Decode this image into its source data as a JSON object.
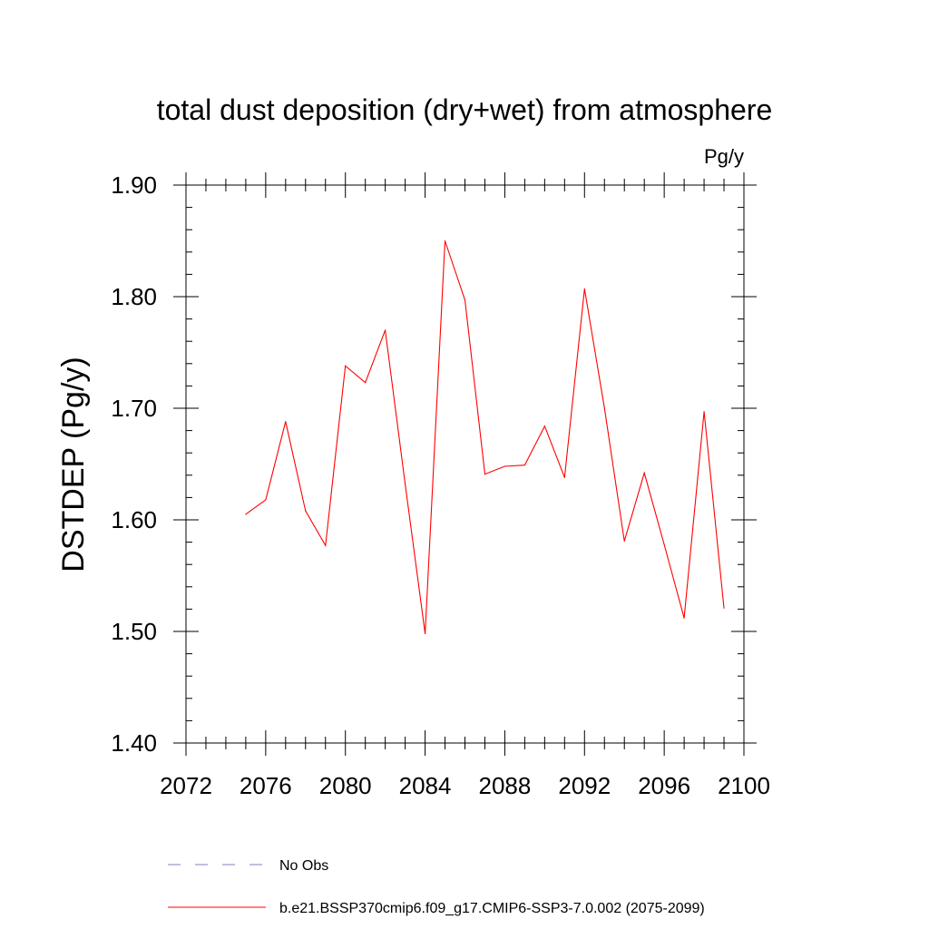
{
  "chart_data": {
    "type": "line",
    "title": "total dust deposition (dry+wet) from atmosphere",
    "units": "Pg/y",
    "ylabel": "DSTDEP  (Pg/y)",
    "xlabel": "",
    "xlim": [
      2072,
      2100
    ],
    "ylim": [
      1.4,
      1.9
    ],
    "x_ticks": [
      "2072",
      "2076",
      "2080",
      "2084",
      "2088",
      "2092",
      "2096",
      "2100"
    ],
    "y_ticks": [
      "1.40",
      "1.50",
      "1.60",
      "1.70",
      "1.80",
      "1.90"
    ],
    "grid": false,
    "series": [
      {
        "name": "b.e21.BSSP370cmip6.f09_g17.CMIP6-SSP3-7.0.002 (2075-2099)",
        "color": "#ff0000",
        "style": "solid",
        "x": [
          2075,
          2076,
          2077,
          2078,
          2079,
          2080,
          2081,
          2082,
          2083,
          2084,
          2085,
          2086,
          2087,
          2088,
          2089,
          2090,
          2091,
          2092,
          2093,
          2094,
          2095,
          2096,
          2097,
          2098,
          2099
        ],
        "values": [
          1.605,
          1.618,
          1.688,
          1.608,
          1.577,
          1.738,
          1.723,
          1.77,
          1.632,
          1.498,
          1.85,
          1.797,
          1.641,
          1.648,
          1.649,
          1.684,
          1.638,
          1.807,
          1.7,
          1.581,
          1.642,
          1.578,
          1.512,
          1.697,
          1.521
        ]
      }
    ],
    "legend": [
      {
        "label": "No Obs",
        "color": "#7f7fbf",
        "style": "dashed"
      },
      {
        "label": "b.e21.BSSP370cmip6.f09_g17.CMIP6-SSP3-7.0.002 (2075-2099)",
        "color": "#ff0000",
        "style": "solid"
      }
    ]
  }
}
